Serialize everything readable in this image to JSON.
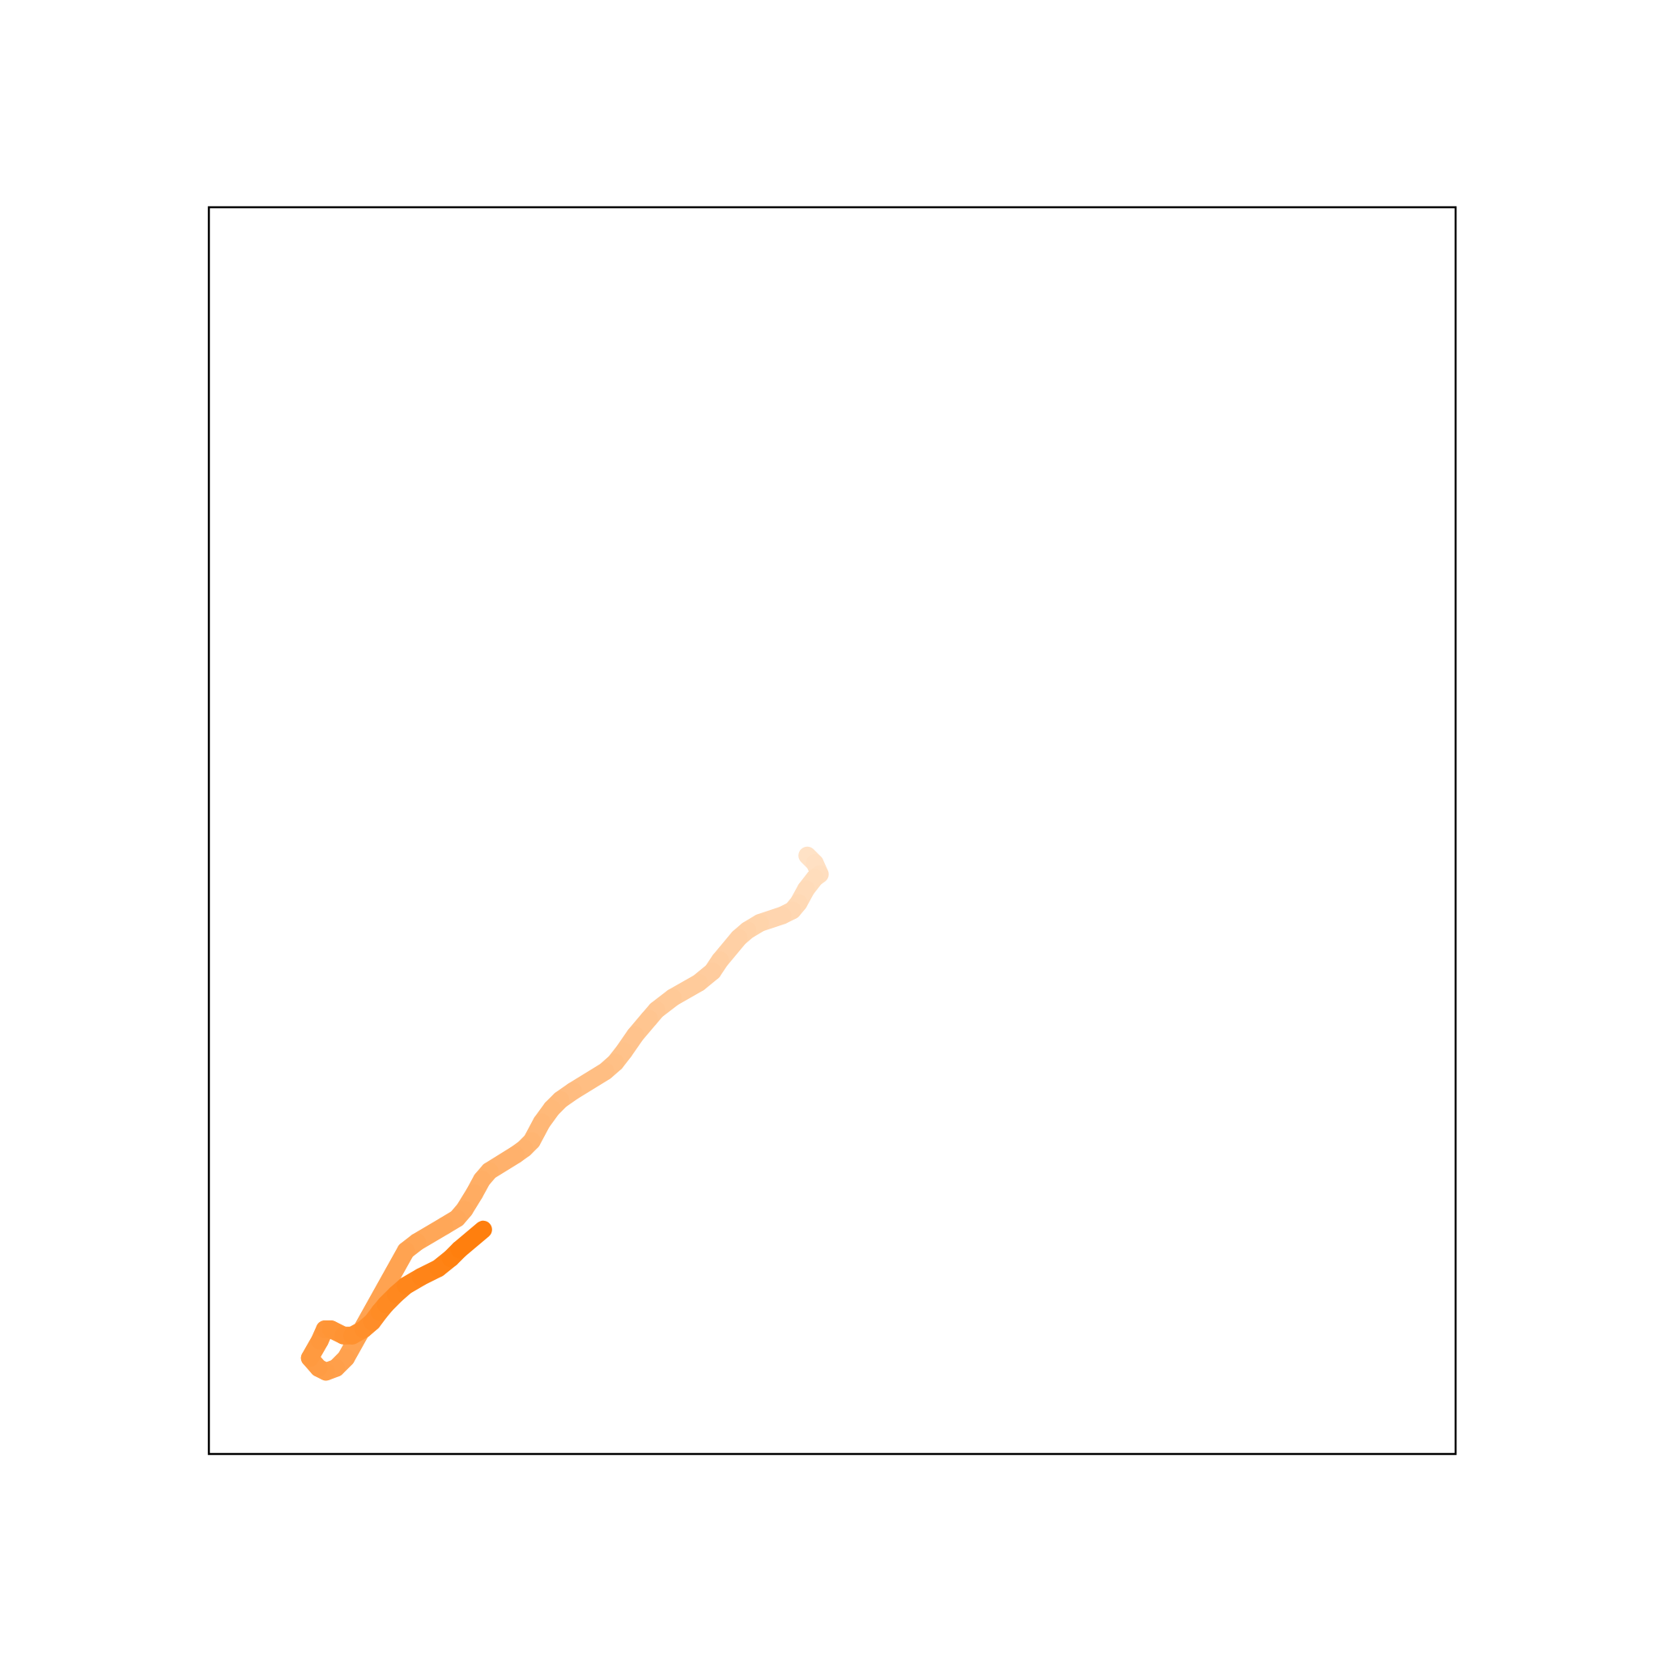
{
  "chart_data": {
    "type": "line",
    "title": "",
    "xlabel": "",
    "ylabel": "",
    "xlim": [
      0,
      1
    ],
    "ylim": [
      0,
      1
    ],
    "grid": false,
    "show_ticks": false,
    "series": [
      {
        "color_start": "#ffe2c6",
        "color_end": "#ff7f0e",
        "points": [
          [
            0.48,
            0.48
          ],
          [
            0.486,
            0.474
          ],
          [
            0.49,
            0.465
          ],
          [
            0.486,
            0.462
          ],
          [
            0.479,
            0.453
          ],
          [
            0.473,
            0.442
          ],
          [
            0.468,
            0.436
          ],
          [
            0.46,
            0.432
          ],
          [
            0.442,
            0.426
          ],
          [
            0.432,
            0.42
          ],
          [
            0.425,
            0.414
          ],
          [
            0.41,
            0.396
          ],
          [
            0.404,
            0.387
          ],
          [
            0.393,
            0.378
          ],
          [
            0.372,
            0.366
          ],
          [
            0.359,
            0.356
          ],
          [
            0.353,
            0.349
          ],
          [
            0.342,
            0.336
          ],
          [
            0.333,
            0.323
          ],
          [
            0.326,
            0.314
          ],
          [
            0.318,
            0.307
          ],
          [
            0.292,
            0.291
          ],
          [
            0.282,
            0.284
          ],
          [
            0.275,
            0.277
          ],
          [
            0.267,
            0.266
          ],
          [
            0.259,
            0.251
          ],
          [
            0.253,
            0.245
          ],
          [
            0.246,
            0.24
          ],
          [
            0.225,
            0.227
          ],
          [
            0.219,
            0.22
          ],
          [
            0.213,
            0.209
          ],
          [
            0.205,
            0.196
          ],
          [
            0.199,
            0.189
          ],
          [
            0.189,
            0.183
          ],
          [
            0.167,
            0.17
          ],
          [
            0.158,
            0.163
          ],
          [
            0.11,
            0.077
          ],
          [
            0.102,
            0.069
          ],
          [
            0.094,
            0.066
          ],
          [
            0.088,
            0.069
          ],
          [
            0.081,
            0.077
          ],
          [
            0.089,
            0.091
          ],
          [
            0.093,
            0.1
          ],
          [
            0.098,
            0.1
          ],
          [
            0.108,
            0.095
          ],
          [
            0.115,
            0.095
          ],
          [
            0.124,
            0.1
          ],
          [
            0.131,
            0.106
          ],
          [
            0.137,
            0.114
          ],
          [
            0.142,
            0.12
          ],
          [
            0.15,
            0.128
          ],
          [
            0.158,
            0.135
          ],
          [
            0.17,
            0.142
          ],
          [
            0.184,
            0.149
          ],
          [
            0.194,
            0.157
          ],
          [
            0.201,
            0.164
          ],
          [
            0.22,
            0.18
          ]
        ]
      }
    ]
  }
}
